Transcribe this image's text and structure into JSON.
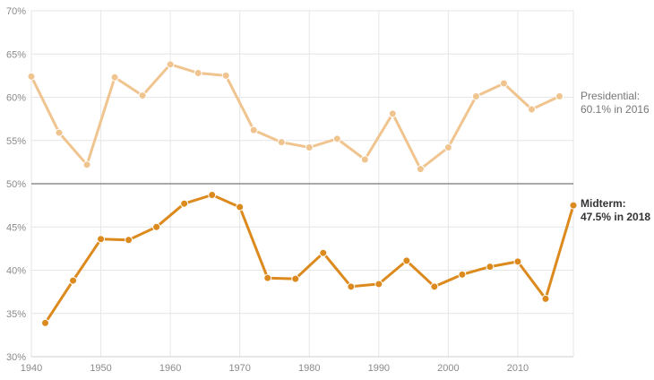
{
  "chart_data": {
    "type": "line",
    "ylim": [
      30,
      70
    ],
    "xlim": [
      1940,
      2018
    ],
    "y_ticks": [
      "30%",
      "35%",
      "40%",
      "45%",
      "50%",
      "55%",
      "60%",
      "65%",
      "70%"
    ],
    "x_ticks": [
      "1940",
      "1950",
      "1960",
      "1970",
      "1980",
      "1990",
      "2000",
      "2010"
    ],
    "grid": true,
    "reference_line": 50,
    "series": [
      {
        "color": "#f0c48f",
        "x": [
          1940,
          1944,
          1948,
          1952,
          1956,
          1960,
          1964,
          1968,
          1972,
          1976,
          1980,
          1984,
          1988,
          1992,
          1996,
          2000,
          2004,
          2008,
          2012,
          2016
        ],
        "y": [
          62.4,
          55.9,
          52.2,
          62.3,
          60.2,
          63.8,
          62.8,
          62.5,
          56.2,
          54.8,
          54.2,
          55.2,
          52.8,
          58.1,
          51.7,
          54.2,
          60.1,
          61.6,
          58.6,
          60.1
        ],
        "label_line1": "Presidential:",
        "label_line2": "60.1% in 2016"
      },
      {
        "color": "#dc8a1e",
        "x": [
          1942,
          1946,
          1950,
          1954,
          1958,
          1962,
          1966,
          1970,
          1974,
          1978,
          1982,
          1986,
          1990,
          1994,
          1998,
          2002,
          2006,
          2010,
          2014,
          2018
        ],
        "y": [
          33.9,
          38.8,
          43.6,
          43.5,
          45.0,
          47.7,
          48.7,
          47.3,
          39.1,
          39.0,
          42.0,
          38.1,
          38.4,
          41.1,
          38.1,
          39.5,
          40.4,
          41.0,
          36.7,
          47.5
        ],
        "label_line1": "Midterm:",
        "label_line2": "47.5% in 2018"
      }
    ]
  },
  "colors": {
    "presidential_label": "#777777",
    "midterm_label": "#333333",
    "reference_line": "#777777"
  }
}
